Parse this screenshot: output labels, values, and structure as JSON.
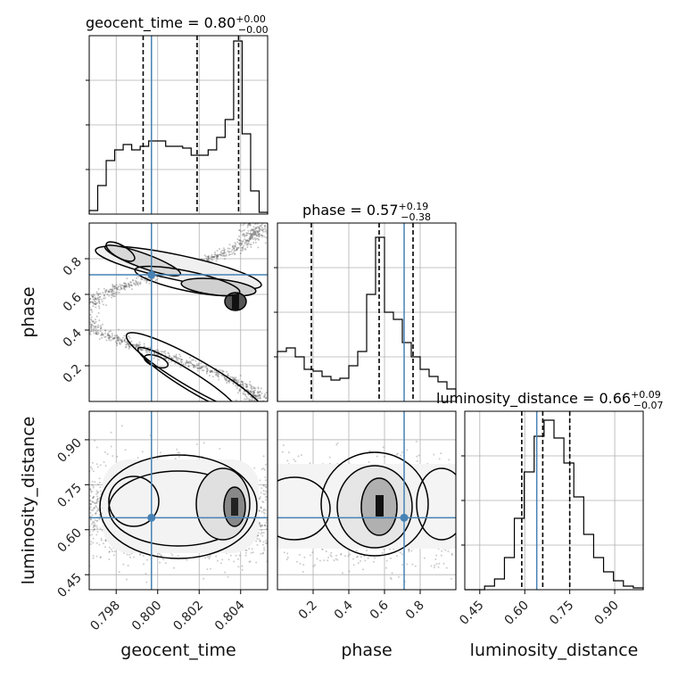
{
  "chart_data": {
    "type": "corner",
    "truth_color": "#4682b4",
    "params": [
      {
        "name": "geocent_time",
        "axis_label": "geocent_time",
        "title": {
          "text": "geocent_time = 0.80",
          "sup": "+0.00",
          "sub": "−0.00"
        },
        "range": [
          0.7967,
          0.8053
        ],
        "ticks": [
          0.798,
          0.8,
          0.802,
          0.804
        ],
        "tick_labels": [
          "0.798",
          "0.800",
          "0.802",
          "0.804"
        ],
        "truth": 0.7997,
        "quantiles": [
          0.7993,
          0.8019,
          0.8039
        ],
        "hist": [
          0.02,
          0.16,
          0.3,
          0.36,
          0.39,
          0.36,
          0.38,
          0.41,
          0.41,
          0.38,
          0.38,
          0.37,
          0.33,
          0.33,
          0.36,
          0.43,
          0.53,
          0.97,
          0.45,
          0.13,
          0.01
        ]
      },
      {
        "name": "phase",
        "axis_label": "phase",
        "title": {
          "text": "phase = 0.57",
          "sup": "+0.19",
          "sub": "−0.38"
        },
        "range": [
          0.0,
          1.0
        ],
        "ticks": [
          0.2,
          0.4,
          0.6,
          0.8
        ],
        "tick_labels": [
          "0.2",
          "0.4",
          "0.6",
          "0.8"
        ],
        "truth": 0.71,
        "quantiles": [
          0.19,
          0.57,
          0.76
        ],
        "hist": [
          0.28,
          0.3,
          0.25,
          0.18,
          0.17,
          0.14,
          0.12,
          0.13,
          0.2,
          0.28,
          0.6,
          0.92,
          0.5,
          0.46,
          0.33,
          0.25,
          0.18,
          0.14,
          0.11,
          0.07
        ]
      },
      {
        "name": "luminosity_distance",
        "axis_label": "luminosity_distance",
        "title": {
          "text": "luminosity_distance = 0.66",
          "sup": "+0.09",
          "sub": "−0.07"
        },
        "range": [
          0.4,
          0.995
        ],
        "ticks": [
          0.45,
          0.6,
          0.75,
          0.9
        ],
        "tick_labels": [
          "0.45",
          "0.60",
          "0.75",
          "0.90"
        ],
        "truth": 0.64,
        "quantiles": [
          0.59,
          0.66,
          0.75
        ],
        "hist": [
          0.0,
          0.0,
          0.02,
          0.06,
          0.18,
          0.4,
          0.66,
          0.86,
          0.95,
          0.85,
          0.71,
          0.52,
          0.31,
          0.18,
          0.1,
          0.05,
          0.02,
          0.01
        ]
      }
    ],
    "scatter_panels": [
      {
        "x_param": "geocent_time",
        "y_param": "phase",
        "y_ticks": [
          0.2,
          0.4,
          0.6,
          0.8
        ],
        "y_tick_labels": [
          "0.2",
          "0.4",
          "0.6",
          "0.8"
        ]
      },
      {
        "x_param": "geocent_time",
        "y_param": "luminosity_distance",
        "y_ticks": [
          0.45,
          0.6,
          0.75,
          0.9
        ],
        "y_tick_labels": [
          "0.45",
          "0.60",
          "0.75",
          "0.90"
        ]
      },
      {
        "x_param": "phase",
        "y_param": "luminosity_distance"
      }
    ]
  }
}
